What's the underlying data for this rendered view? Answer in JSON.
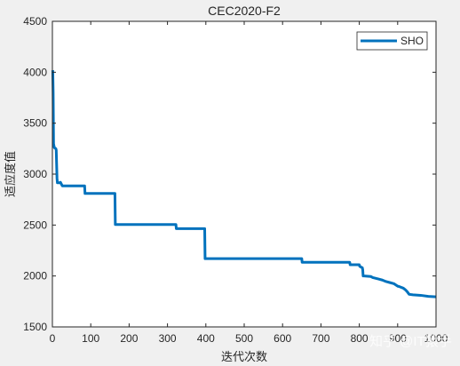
{
  "chart_data": {
    "type": "line",
    "title": "CEC2020-F2",
    "xlabel": "迭代次数",
    "ylabel": "适应度值",
    "xlim": [
      0,
      1000
    ],
    "ylim": [
      1500,
      4500
    ],
    "xticks": [
      0,
      100,
      200,
      300,
      400,
      500,
      600,
      700,
      800,
      900,
      1000
    ],
    "yticks": [
      1500,
      2000,
      2500,
      3000,
      3500,
      4000,
      4500
    ],
    "xtick_labels": [
      "0",
      "100",
      "200",
      "300",
      "400",
      "500",
      "600",
      "700",
      "800",
      "900",
      "1000"
    ],
    "ytick_labels": [
      "1500",
      "2000",
      "2500",
      "3000",
      "3500",
      "4000",
      "4500"
    ],
    "grid": false,
    "legend_position": "top-right",
    "series": [
      {
        "name": "SHO",
        "color": "#0072bd",
        "x": [
          1,
          2,
          3,
          5,
          9,
          10,
          12,
          13,
          20,
          21,
          25,
          26,
          84,
          85,
          163,
          164,
          322,
          323,
          397,
          398,
          650,
          651,
          775,
          776,
          800,
          801,
          808,
          809,
          810,
          812,
          830,
          835,
          850,
          860,
          870,
          880,
          890,
          900,
          905,
          915,
          920,
          925,
          930,
          940,
          960,
          980,
          1000
        ],
        "y": [
          4020,
          3800,
          3300,
          3260,
          3250,
          3235,
          2960,
          2915,
          2915,
          2920,
          2890,
          2885,
          2885,
          2810,
          2810,
          2505,
          2505,
          2465,
          2465,
          2170,
          2170,
          2135,
          2135,
          2110,
          2110,
          2095,
          2080,
          2060,
          2000,
          2000,
          1995,
          1985,
          1970,
          1960,
          1945,
          1935,
          1925,
          1900,
          1895,
          1880,
          1865,
          1845,
          1820,
          1815,
          1810,
          1800,
          1795
        ]
      }
    ]
  },
  "watermark": "知乎 @IT猿手"
}
